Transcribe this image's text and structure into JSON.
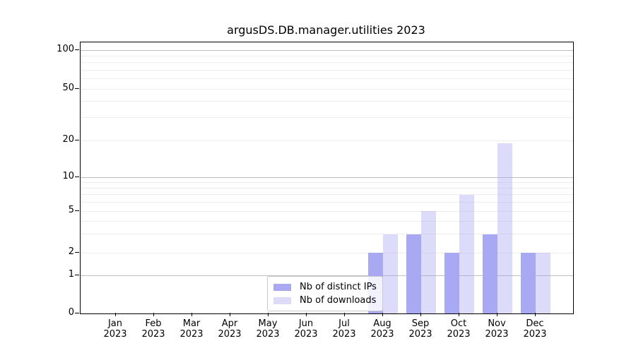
{
  "chart_data": {
    "type": "bar",
    "title": "argusDS.DB.manager.utilities 2023",
    "categories": [
      "Jan 2023",
      "Feb 2023",
      "Mar 2023",
      "Apr 2023",
      "May 2023",
      "Jun 2023",
      "Jul 2023",
      "Aug 2023",
      "Sep 2023",
      "Oct 2023",
      "Nov 2023",
      "Dec 2023"
    ],
    "series": [
      {
        "name": "Nb of distinct IPs",
        "color": "#a9a9f3",
        "opacity": 1,
        "legend_color": "#a9a9f3",
        "values": [
          0,
          0,
          0,
          0,
          0,
          0,
          0,
          2,
          3,
          2,
          3,
          2
        ]
      },
      {
        "name": "Nb of downloads",
        "color": "#a9a9f3",
        "opacity": 0.41,
        "legend_color": "#dcdcf8",
        "values": [
          0,
          0,
          0,
          0,
          0,
          0,
          0,
          3,
          5,
          7,
          19,
          2
        ]
      }
    ],
    "yticks": [
      0,
      1,
      2,
      5,
      10,
      20,
      50,
      100
    ],
    "scale": "symlog",
    "ylim": [
      0,
      115
    ],
    "grid": true,
    "legend_position": "lower center",
    "xlabel": "",
    "ylabel": ""
  }
}
